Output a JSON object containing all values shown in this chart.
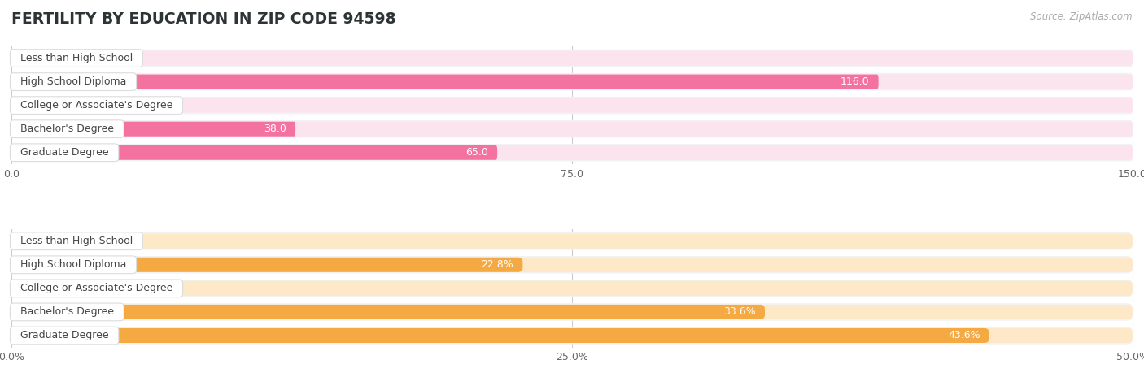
{
  "title": "FERTILITY BY EDUCATION IN ZIP CODE 94598",
  "source": "Source: ZipAtlas.com",
  "top_chart": {
    "categories": [
      "Less than High School",
      "High School Diploma",
      "College or Associate's Degree",
      "Bachelor's Degree",
      "Graduate Degree"
    ],
    "values": [
      0.0,
      116.0,
      0.0,
      38.0,
      65.0
    ],
    "xlim": [
      0,
      150
    ],
    "xticks": [
      0.0,
      75.0,
      150.0
    ],
    "xtick_labels": [
      "0.0",
      "75.0",
      "150.0"
    ],
    "bar_color": "#f472a0",
    "bar_bg_color": "#fce4ee",
    "row_bg_color": "#f2f2f2"
  },
  "bottom_chart": {
    "categories": [
      "Less than High School",
      "High School Diploma",
      "College or Associate's Degree",
      "Bachelor's Degree",
      "Graduate Degree"
    ],
    "values": [
      0.0,
      22.8,
      0.0,
      33.6,
      43.6
    ],
    "xlim": [
      0,
      50
    ],
    "xticks": [
      0.0,
      25.0,
      50.0
    ],
    "xtick_labels": [
      "0.0%",
      "25.0%",
      "50.0%"
    ],
    "bar_color": "#f5a942",
    "bar_bg_color": "#fde8c8",
    "row_bg_color": "#f2f2f2"
  },
  "title_color": "#2d3436",
  "source_color": "#aaaaaa",
  "label_text_color": "#444444",
  "value_label_inside_color": "#ffffff",
  "value_label_outside_color": "#555555"
}
